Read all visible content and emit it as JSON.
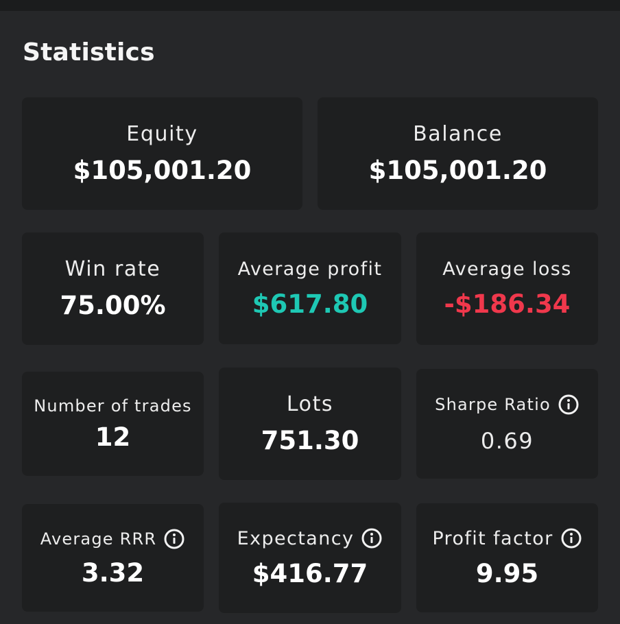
{
  "header": {
    "title": "Statistics"
  },
  "colors": {
    "positive": "#1ec8b4",
    "negative": "#f0384c"
  },
  "stats": {
    "equity": {
      "label": "Equity",
      "value": "$105,001.20"
    },
    "balance": {
      "label": "Balance",
      "value": "$105,001.20"
    },
    "win_rate": {
      "label": "Win rate",
      "value": "75.00%"
    },
    "average_profit": {
      "label": "Average profit",
      "value": "$617.80"
    },
    "average_loss": {
      "label": "Average loss",
      "value": "-$186.34"
    },
    "number_of_trades": {
      "label": "Number of trades",
      "value": "12"
    },
    "lots": {
      "label": "Lots",
      "value": "751.30"
    },
    "sharpe_ratio": {
      "label": "Sharpe Ratio",
      "value": "0.69",
      "icon": "info-icon"
    },
    "average_rrr": {
      "label": "Average RRR",
      "value": "3.32",
      "icon": "info-icon"
    },
    "expectancy": {
      "label": "Expectancy",
      "value": "$416.77",
      "icon": "info-icon"
    },
    "profit_factor": {
      "label": "Profit factor",
      "value": "9.95",
      "icon": "info-icon"
    }
  }
}
